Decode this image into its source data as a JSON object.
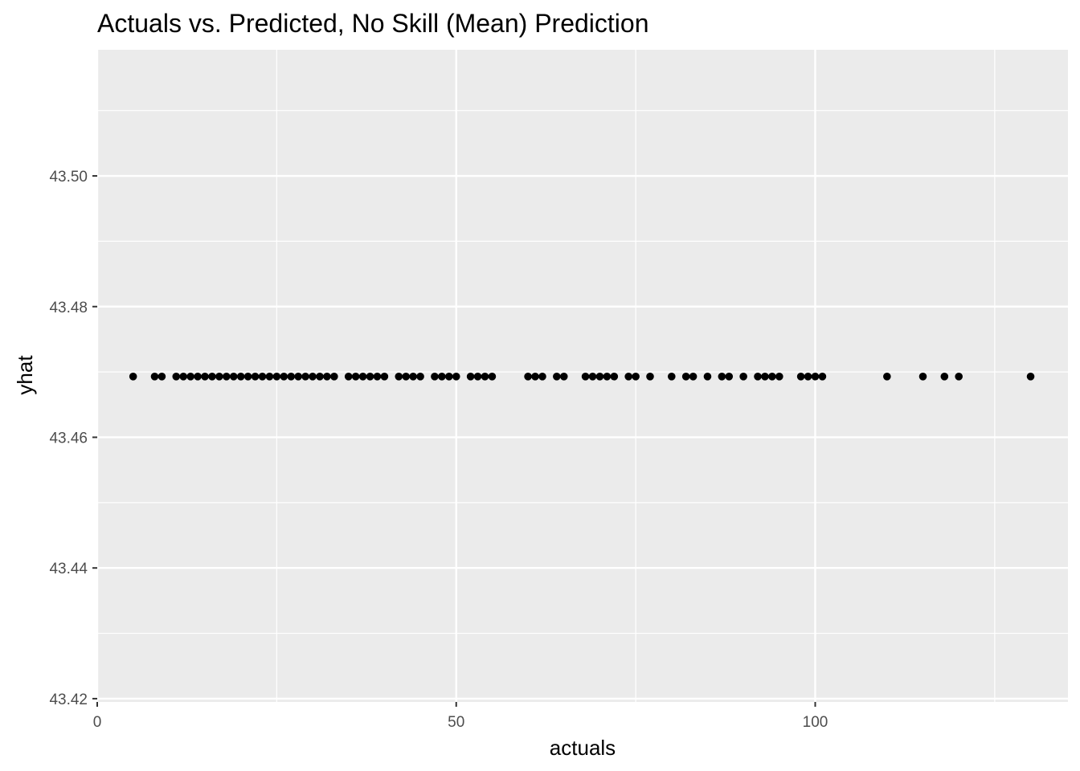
{
  "chart_data": {
    "type": "scatter",
    "title": "Actuals vs. Predicted, No Skill (Mean) Prediction",
    "xlabel": "actuals",
    "ylabel": "yhat",
    "xlim": [
      0,
      135.2
    ],
    "ylim": [
      43.4195,
      43.5193
    ],
    "x_ticks": [
      0,
      50,
      100
    ],
    "x_tick_labels": [
      "0",
      "50",
      "100"
    ],
    "x_minor_ticks": [
      25,
      75,
      125
    ],
    "y_ticks": [
      43.42,
      43.44,
      43.46,
      43.48,
      43.5
    ],
    "y_tick_labels": [
      "43.42",
      "43.44",
      "43.46",
      "43.48",
      "43.50"
    ],
    "y_minor_ticks": [
      43.43,
      43.45,
      43.47,
      43.49,
      43.51
    ],
    "grid": true,
    "legend": "none",
    "colors": {
      "panel": "#EBEBEB",
      "grid": "#FFFFFF",
      "point": "#000000",
      "tick": "#333333"
    },
    "series": [
      {
        "y_constant": 43.4693,
        "x": [
          5,
          8,
          9,
          11,
          12,
          13,
          14,
          15,
          16,
          17,
          18,
          19,
          20,
          21,
          22,
          23,
          24,
          25,
          26,
          27,
          28,
          29,
          30,
          31,
          32,
          33,
          35,
          36,
          37,
          38,
          39,
          40,
          42,
          43,
          44,
          45,
          47,
          48,
          49,
          50,
          52,
          53,
          54,
          55,
          60,
          61,
          62,
          64,
          65,
          68,
          69,
          70,
          71,
          72,
          74,
          75,
          77,
          80,
          82,
          83,
          85,
          87,
          88,
          90,
          92,
          93,
          94,
          95,
          98,
          99,
          100,
          101,
          110,
          115,
          118,
          120,
          130
        ]
      }
    ]
  }
}
